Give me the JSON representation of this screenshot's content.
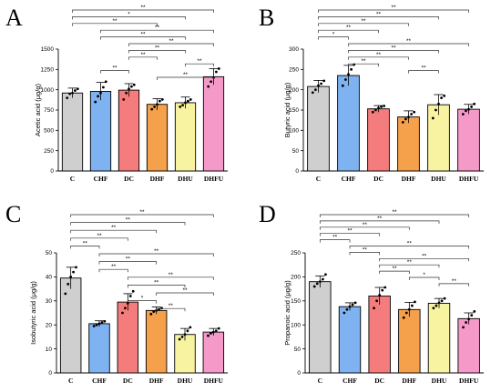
{
  "figure_colors": {
    "C": "#cfcfcf",
    "CHF": "#7fb2f0",
    "DC": "#f47c7c",
    "DHF": "#f5a04a",
    "DHU": "#f7f3a0",
    "DHFU": "#f59ac8",
    "stroke": "#000000"
  },
  "significance_label": "**",
  "chart_data": [
    {
      "panel": "A",
      "type": "bar",
      "ylabel": "Acetic acid (μg/g)",
      "ylim": [
        0,
        1500
      ],
      "yticks": [
        0,
        250,
        500,
        750,
        1000,
        1250,
        1500
      ],
      "categories": [
        "C",
        "CHF",
        "DC",
        "DHF",
        "DHU",
        "DHFU"
      ],
      "values": [
        960,
        980,
        995,
        820,
        840,
        1160
      ],
      "errors": [
        60,
        110,
        80,
        70,
        70,
        100
      ],
      "points": [
        [
          900,
          950,
          960,
          990,
          1010
        ],
        [
          850,
          920,
          960,
          1030,
          1100
        ],
        [
          880,
          960,
          1010,
          1040,
          1060
        ],
        [
          760,
          790,
          820,
          860,
          880
        ],
        [
          790,
          810,
          840,
          860,
          880
        ],
        [
          1040,
          1100,
          1150,
          1220,
          1260
        ]
      ],
      "comparisons": [
        {
          "from": "C",
          "to": "DHFU",
          "label": "**"
        },
        {
          "from": "C",
          "to": "DHU",
          "label": "*"
        },
        {
          "from": "C",
          "to": "DHF",
          "label": "**"
        },
        {
          "from": "CHF",
          "to": "DHFU",
          "label": "**"
        },
        {
          "from": "CHF",
          "to": "DHU",
          "label": "**"
        },
        {
          "from": "DC",
          "to": "DHFU",
          "label": "**"
        },
        {
          "from": "DC",
          "to": "DHU",
          "label": "**"
        },
        {
          "from": "DC",
          "to": "DHF",
          "label": "**"
        },
        {
          "from": "DHU",
          "to": "DHFU",
          "label": "**"
        },
        {
          "from": "CHF",
          "to": "DC",
          "label": "**"
        },
        {
          "from": "DHF",
          "to": "DHFU",
          "label": "**"
        }
      ]
    },
    {
      "panel": "B",
      "type": "bar",
      "ylabel": "Butyric acid (μg/g)",
      "ylim": [
        0,
        300
      ],
      "yticks": [
        0,
        50,
        100,
        150,
        200,
        250,
        300
      ],
      "categories": [
        "C",
        "CHF",
        "DC",
        "DHF",
        "DHU",
        "DHFU"
      ],
      "values": [
        208,
        235,
        153,
        133,
        163,
        152
      ],
      "errors": [
        15,
        25,
        8,
        15,
        25,
        12
      ],
      "points": [
        [
          193,
          200,
          210,
          215,
          222
        ],
        [
          210,
          225,
          238,
          250,
          262
        ],
        [
          145,
          150,
          155,
          158,
          160
        ],
        [
          120,
          128,
          133,
          140,
          145
        ],
        [
          130,
          150,
          165,
          180,
          185
        ],
        [
          140,
          148,
          152,
          158,
          165
        ]
      ],
      "comparisons": [
        {
          "from": "C",
          "to": "DHFU",
          "label": "**"
        },
        {
          "from": "C",
          "to": "DHU",
          "label": "**"
        },
        {
          "from": "C",
          "to": "DHF",
          "label": "**"
        },
        {
          "from": "C",
          "to": "DC",
          "label": "**"
        },
        {
          "from": "C",
          "to": "CHF",
          "label": "*"
        },
        {
          "from": "CHF",
          "to": "DHFU",
          "label": "**"
        },
        {
          "from": "CHF",
          "to": "DHU",
          "label": "**"
        },
        {
          "from": "CHF",
          "to": "DHF",
          "label": "**"
        },
        {
          "from": "CHF",
          "to": "DC",
          "label": "**"
        },
        {
          "from": "DHF",
          "to": "DHU",
          "label": "**"
        }
      ]
    },
    {
      "panel": "C",
      "type": "bar",
      "ylabel": "Isobutyric acid (μg/g)",
      "ylim": [
        0,
        50
      ],
      "yticks": [
        0,
        10,
        20,
        30,
        40,
        50
      ],
      "categories": [
        "C",
        "CHF",
        "DC",
        "DHF",
        "DHU",
        "DHFU"
      ],
      "values": [
        39.5,
        20.5,
        29.5,
        26,
        16,
        17
      ],
      "errors": [
        4.5,
        1.2,
        3.5,
        1.5,
        2.5,
        1.5
      ],
      "points": [
        [
          33,
          37,
          40,
          42,
          44
        ],
        [
          19.5,
          20,
          20.5,
          21,
          21.5
        ],
        [
          25,
          27,
          29,
          32,
          34
        ],
        [
          24.5,
          25.5,
          26,
          26.5,
          27
        ],
        [
          14,
          15,
          16,
          17.5,
          19
        ],
        [
          15.5,
          16.5,
          17,
          17.5,
          18.5
        ]
      ],
      "comparisons": [
        {
          "from": "C",
          "to": "DHFU",
          "label": "**"
        },
        {
          "from": "C",
          "to": "DHU",
          "label": "**"
        },
        {
          "from": "C",
          "to": "DHF",
          "label": "**"
        },
        {
          "from": "C",
          "to": "DC",
          "label": "**"
        },
        {
          "from": "C",
          "to": "CHF",
          "label": "**"
        },
        {
          "from": "CHF",
          "to": "DHFU",
          "label": "**"
        },
        {
          "from": "CHF",
          "to": "DHF",
          "label": "**"
        },
        {
          "from": "CHF",
          "to": "DC",
          "label": "**"
        },
        {
          "from": "DC",
          "to": "DHFU",
          "label": "**"
        },
        {
          "from": "DC",
          "to": "DHU",
          "label": "**"
        },
        {
          "from": "DHF",
          "to": "DHFU",
          "label": "**"
        },
        {
          "from": "DC",
          "to": "DHF",
          "label": "*"
        },
        {
          "from": "DHF",
          "to": "DHU",
          "label": "**"
        }
      ]
    },
    {
      "panel": "D",
      "type": "bar",
      "ylabel": "Propanoic acid (μg/g)",
      "ylim": [
        0,
        250
      ],
      "yticks": [
        0,
        50,
        100,
        150,
        200,
        250
      ],
      "categories": [
        "C",
        "CHF",
        "DC",
        "DHF",
        "DHU",
        "DHFU"
      ],
      "values": [
        190,
        138,
        160,
        132,
        145,
        113
      ],
      "errors": [
        12,
        8,
        18,
        15,
        10,
        12
      ],
      "points": [
        [
          180,
          186,
          190,
          195,
          205
        ],
        [
          125,
          132,
          138,
          142,
          146
        ],
        [
          135,
          150,
          162,
          172,
          178
        ],
        [
          115,
          125,
          132,
          140,
          148
        ],
        [
          135,
          140,
          146,
          150,
          155
        ],
        [
          95,
          105,
          112,
          120,
          128
        ]
      ],
      "comparisons": [
        {
          "from": "C",
          "to": "DHFU",
          "label": "**"
        },
        {
          "from": "C",
          "to": "DHU",
          "label": "**"
        },
        {
          "from": "C",
          "to": "DHF",
          "label": "**"
        },
        {
          "from": "C",
          "to": "DC",
          "label": "**"
        },
        {
          "from": "C",
          "to": "CHF",
          "label": "**"
        },
        {
          "from": "CHF",
          "to": "DHFU",
          "label": "**"
        },
        {
          "from": "CHF",
          "to": "DC",
          "label": "**"
        },
        {
          "from": "DC",
          "to": "DHFU",
          "label": "**"
        },
        {
          "from": "DC",
          "to": "DHU",
          "label": "**"
        },
        {
          "from": "DC",
          "to": "DHF",
          "label": "**"
        },
        {
          "from": "DHF",
          "to": "DHU",
          "label": "*"
        },
        {
          "from": "DHU",
          "to": "DHFU",
          "label": "**"
        }
      ]
    }
  ]
}
